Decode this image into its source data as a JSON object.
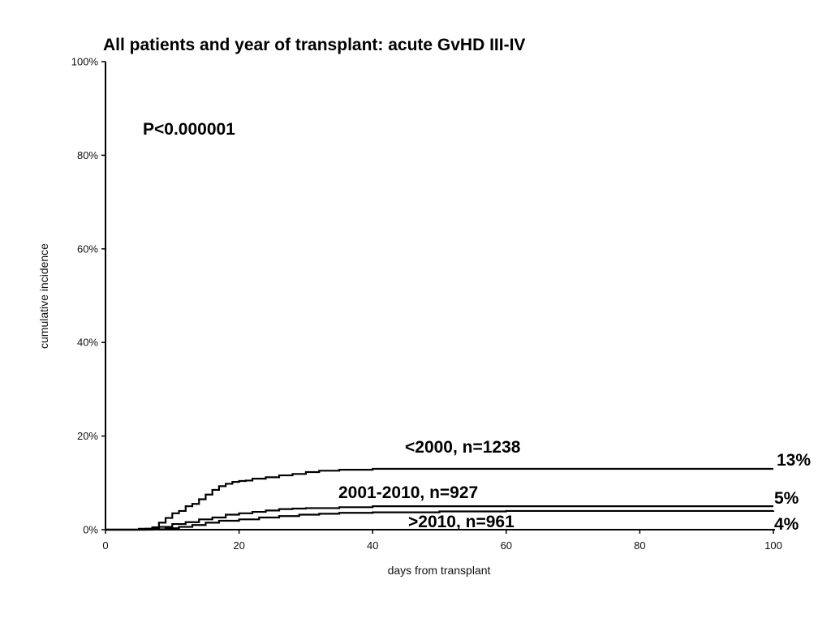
{
  "chart_data": {
    "type": "line",
    "step": true,
    "title": "All patients  and year of transplant: acute GvHD III-IV",
    "xlabel": "days from transplant",
    "ylabel": "cumulative incidence",
    "xlim": [
      0,
      100
    ],
    "ylim": [
      0,
      100
    ],
    "x_ticks": [
      "0",
      "20",
      "40",
      "60",
      "80",
      "100"
    ],
    "y_ticks": [
      "0%",
      "20%",
      "40%",
      "60%",
      "80%",
      "100%"
    ],
    "grid": false,
    "p_value": "P<0.000001",
    "series": [
      {
        "name": "<2000, n=1238",
        "end_label": "13%",
        "points": [
          [
            0,
            0
          ],
          [
            5,
            0.2
          ],
          [
            7,
            0.5
          ],
          [
            8,
            1.5
          ],
          [
            9,
            2.5
          ],
          [
            10,
            3.5
          ],
          [
            11,
            4.0
          ],
          [
            12,
            5.0
          ],
          [
            13,
            5.5
          ],
          [
            14,
            6.5
          ],
          [
            15,
            7.5
          ],
          [
            16,
            8.5
          ],
          [
            17,
            9.3
          ],
          [
            18,
            9.8
          ],
          [
            19,
            10.2
          ],
          [
            20,
            10.4
          ],
          [
            21,
            10.5
          ],
          [
            22,
            10.9
          ],
          [
            24,
            11.2
          ],
          [
            26,
            11.6
          ],
          [
            28,
            11.9
          ],
          [
            30,
            12.3
          ],
          [
            32,
            12.6
          ],
          [
            35,
            12.8
          ],
          [
            40,
            13.0
          ],
          [
            60,
            13.0
          ],
          [
            100,
            13.0
          ]
        ]
      },
      {
        "name": "2001-2010, n=927",
        "end_label": "5%",
        "points": [
          [
            0,
            0
          ],
          [
            6,
            0.2
          ],
          [
            8,
            0.6
          ],
          [
            10,
            1.2
          ],
          [
            12,
            1.6
          ],
          [
            14,
            2.2
          ],
          [
            16,
            2.6
          ],
          [
            18,
            3.2
          ],
          [
            20,
            3.5
          ],
          [
            22,
            3.8
          ],
          [
            24,
            4.1
          ],
          [
            26,
            4.4
          ],
          [
            28,
            4.5
          ],
          [
            30,
            4.6
          ],
          [
            35,
            4.8
          ],
          [
            40,
            5.0
          ],
          [
            60,
            5.0
          ],
          [
            100,
            5.0
          ]
        ]
      },
      {
        "name": ">2010, n=961",
        "end_label": "4%",
        "points": [
          [
            0,
            0
          ],
          [
            7,
            0.1
          ],
          [
            9,
            0.3
          ],
          [
            11,
            0.6
          ],
          [
            13,
            1.0
          ],
          [
            15,
            1.5
          ],
          [
            17,
            1.9
          ],
          [
            20,
            2.2
          ],
          [
            23,
            2.6
          ],
          [
            26,
            2.9
          ],
          [
            29,
            3.2
          ],
          [
            32,
            3.4
          ],
          [
            35,
            3.6
          ],
          [
            40,
            3.7
          ],
          [
            50,
            3.9
          ],
          [
            60,
            4.0
          ],
          [
            100,
            4.1
          ]
        ]
      }
    ]
  }
}
